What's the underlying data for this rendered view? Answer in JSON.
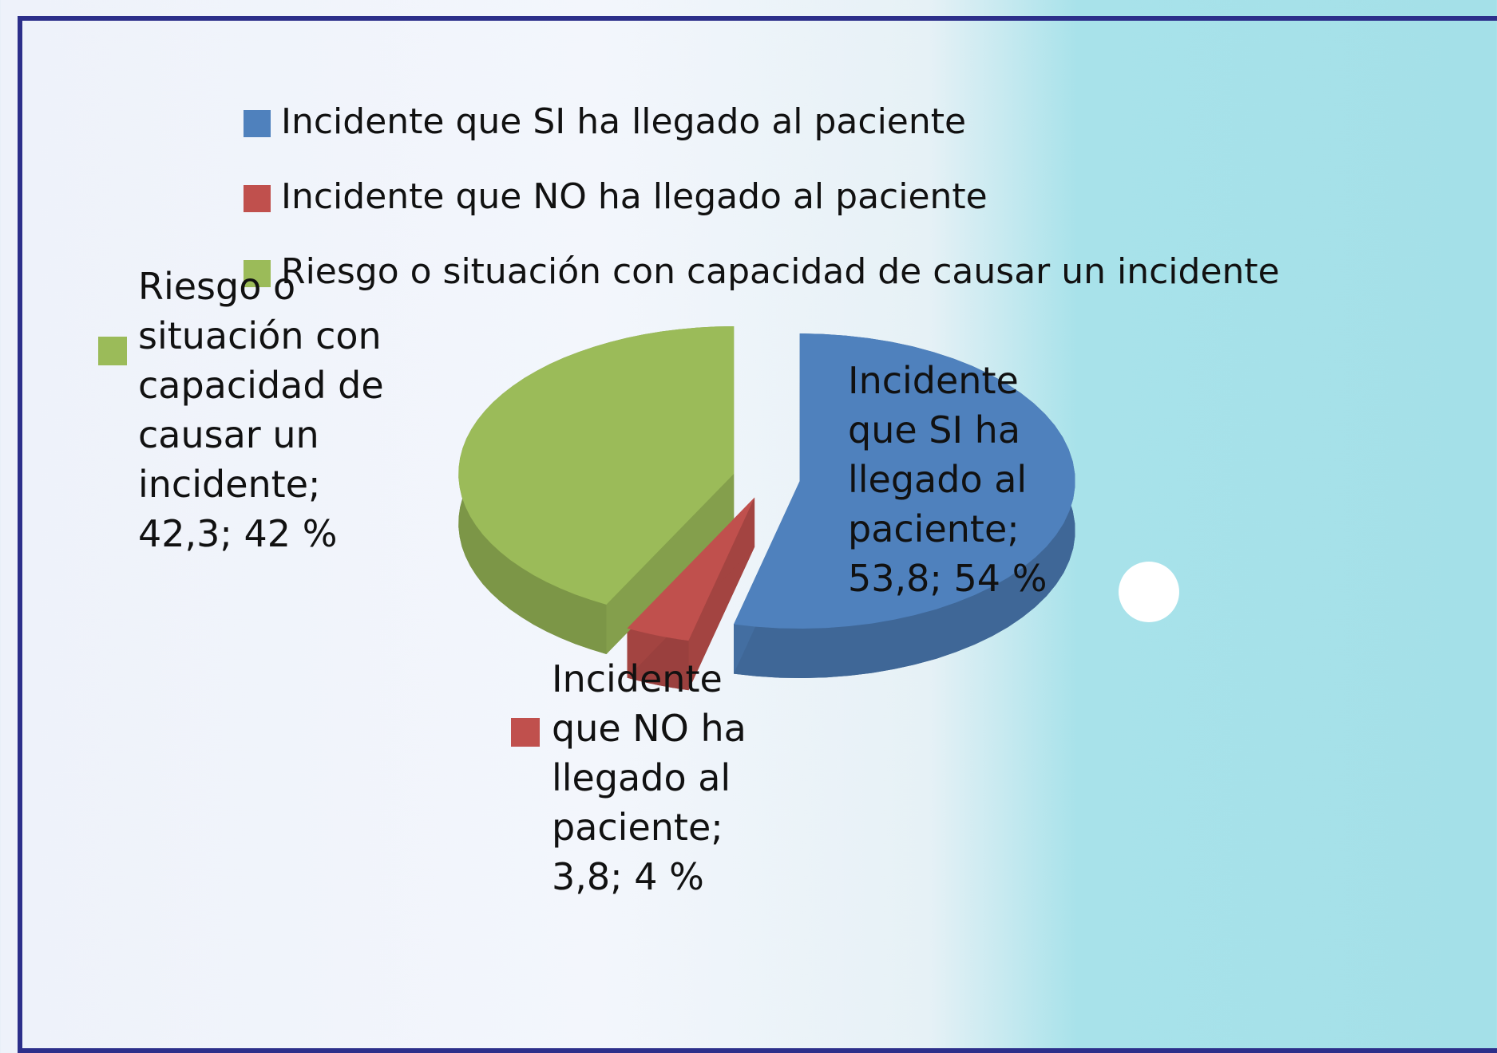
{
  "chart_data": {
    "type": "pie",
    "categories": [
      "Incidente que SI ha llegado al paciente",
      "Incidente que NO ha llegado al paciente",
      "Riesgo o situación con capacidad de causar un incidente"
    ],
    "values": [
      53.8,
      3.8,
      42.3
    ],
    "value_labels": [
      "Incidente que SI ha llegado al paciente; 53,8; 54 %",
      "Incidente que NO ha llegado al paciente; 3,8; 4 %",
      "Riesgo o situación con capacidad de causar un incidente; 42,3; 42 %"
    ],
    "colors": [
      "#4f81bd",
      "#c0504d",
      "#9bbb59"
    ],
    "legend": "top"
  }
}
